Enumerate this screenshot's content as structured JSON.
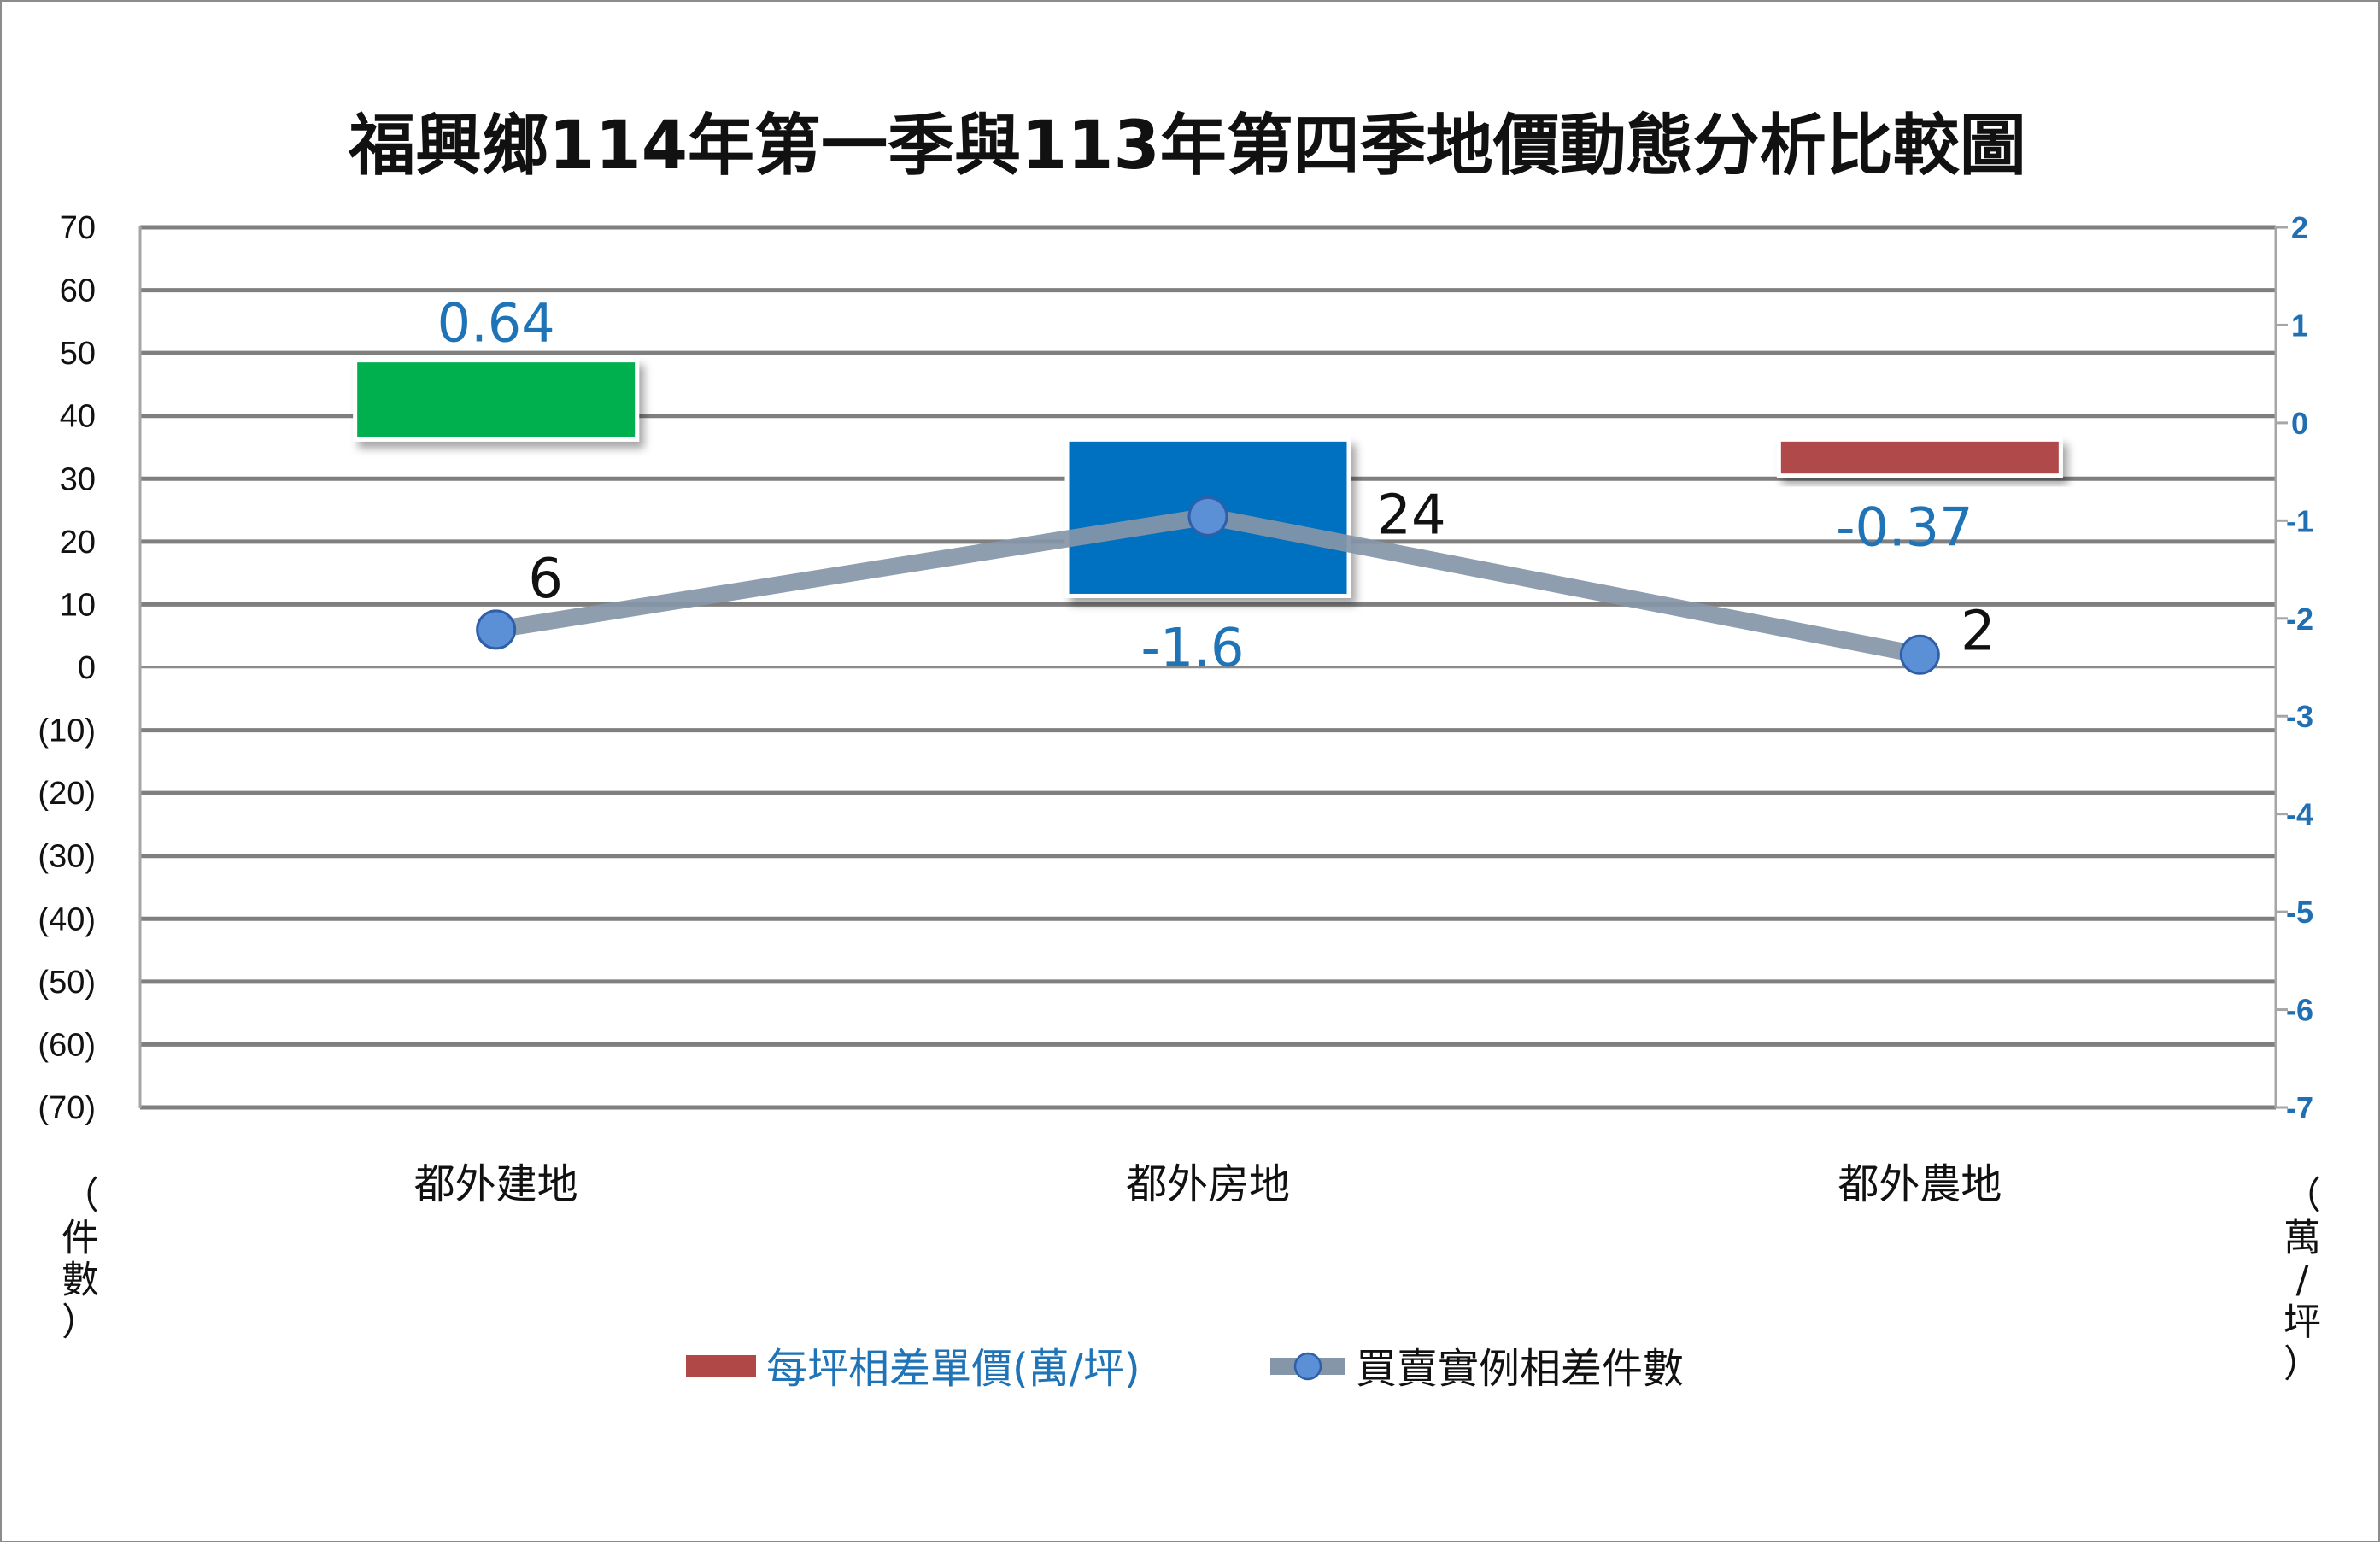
{
  "chart_data": {
    "type": "bar",
    "title": "福興鄉114年第一季與113年第四季地價動態分析比較圖",
    "categories": [
      "都外建地",
      "都外房地",
      "都外農地"
    ],
    "series": [
      {
        "name": "每坪相差單價(萬/坪)",
        "kind": "bar",
        "axis": "right",
        "values": [
          0.64,
          -1.6,
          -0.37
        ],
        "labels": [
          "0.64",
          "-1.6",
          "-0.37"
        ],
        "colors": [
          "#00b050",
          "#0070c0",
          "#b04848"
        ]
      },
      {
        "name": "買賣實例相差件數",
        "kind": "line",
        "axis": "left",
        "values": [
          6,
          24,
          2
        ],
        "labels": [
          "6",
          "24",
          "2"
        ],
        "color": "#8496a8",
        "marker_color": "#5b8fd6"
      }
    ],
    "left_axis": {
      "title": "（件數）",
      "ylim": [
        -70,
        70
      ],
      "ticks": [
        "70",
        "60",
        "50",
        "40",
        "30",
        "20",
        "10",
        "0",
        "(10)",
        "(20)",
        "(30)",
        "(40)",
        "(50)",
        "(60)",
        "(70)"
      ]
    },
    "right_axis": {
      "title": "（萬/坪）",
      "ylim": [
        -7,
        2
      ],
      "ticks": [
        "2",
        "1",
        "0",
        "-1",
        "-2",
        "-3",
        "-4",
        "-5",
        "-6",
        "-7"
      ]
    },
    "grid": true,
    "legend_position": "bottom"
  }
}
